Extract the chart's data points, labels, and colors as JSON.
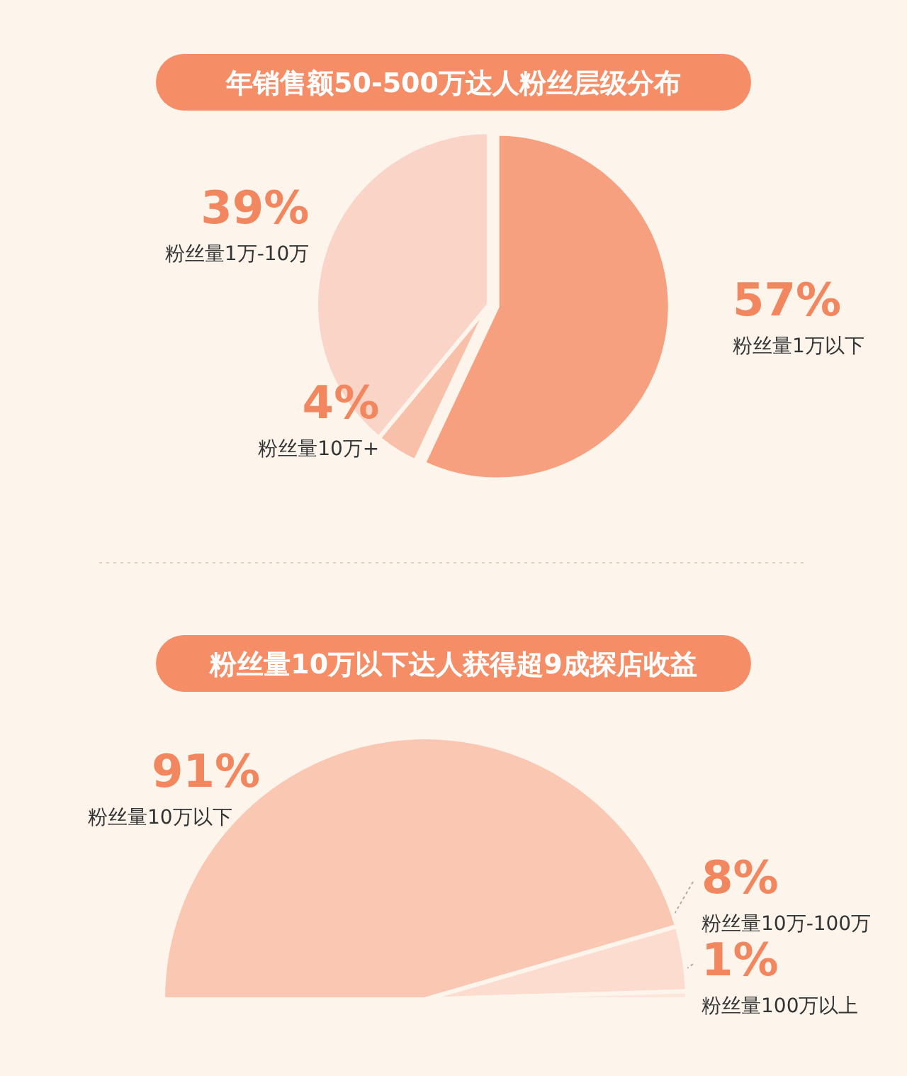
{
  "chart_data": [
    {
      "type": "pie",
      "title": "年销售额50-500万达人粉丝层级分布",
      "categories": [
        "粉丝量1万以下",
        "粉丝量10万+",
        "粉丝量1万-10万"
      ],
      "values": [
        57,
        4,
        39
      ],
      "value_labels": [
        "57%",
        "4%",
        "39%"
      ],
      "colors": [
        "#f7a07f",
        "#f8bfa9",
        "#f9d4c7"
      ]
    },
    {
      "type": "pie",
      "title": "粉丝量10万以下达人获得超9成探店收益",
      "categories": [
        "粉丝量10万以下",
        "粉丝量10万-100万",
        "粉丝量100万以上"
      ],
      "values": [
        91,
        8,
        1
      ],
      "value_labels": [
        "91%",
        "8%",
        "1%"
      ],
      "colors": [
        "#f9c7b2",
        "#fbdccf",
        "#fce6dc"
      ]
    }
  ]
}
